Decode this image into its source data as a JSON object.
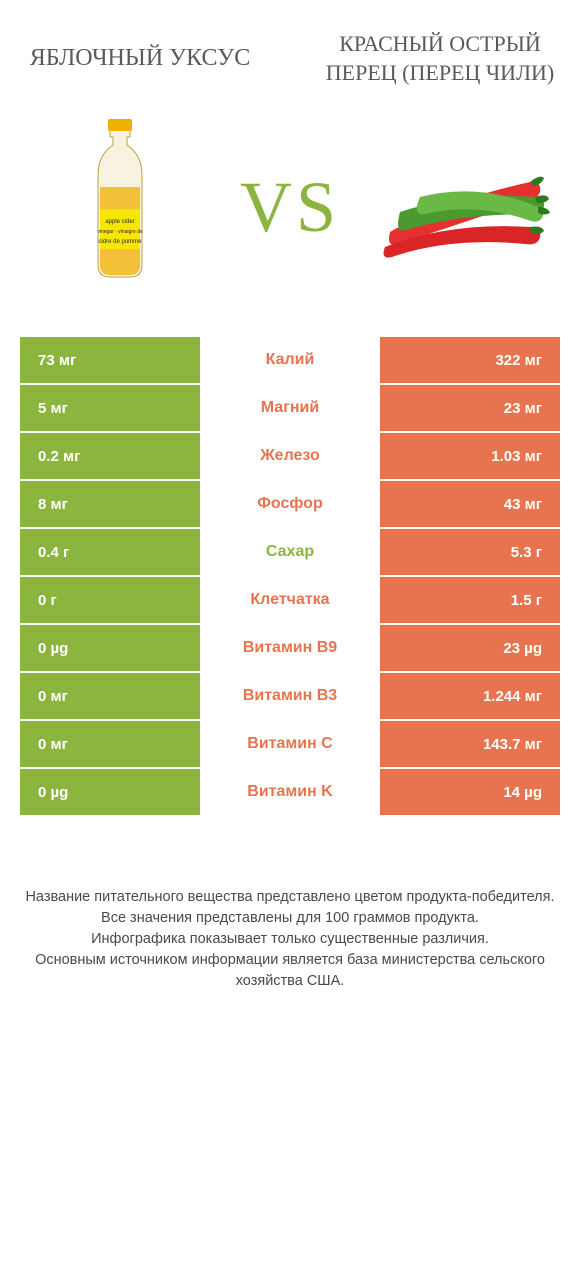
{
  "colors": {
    "left": "#8cb53f",
    "right": "#e8744f",
    "title": "#5a5a5a",
    "footnote": "#4a4a4a",
    "bottle_liquid": "#f0b000",
    "bottle_label": "#f7e600",
    "pepper_red": "#e53030",
    "pepper_green": "#4a9b2f",
    "pepper_stem": "#2e7a1e"
  },
  "header": {
    "left_title": "Яблочный уксус",
    "right_title": "Красный острый перец (перец чили)",
    "left_fontsize": 24,
    "right_fontsize": 22
  },
  "vs_label": "VS",
  "rows": [
    {
      "label": "Калий",
      "left": "73 мг",
      "right": "322 мг",
      "winner": "right"
    },
    {
      "label": "Магний",
      "left": "5 мг",
      "right": "23 мг",
      "winner": "right"
    },
    {
      "label": "Железо",
      "left": "0.2 мг",
      "right": "1.03 мг",
      "winner": "right"
    },
    {
      "label": "Фосфор",
      "left": "8 мг",
      "right": "43 мг",
      "winner": "right"
    },
    {
      "label": "Сахар",
      "left": "0.4 г",
      "right": "5.3 г",
      "winner": "left"
    },
    {
      "label": "Клетчатка",
      "left": "0 г",
      "right": "1.5 г",
      "winner": "right"
    },
    {
      "label": "Витамин B9",
      "left": "0 µg",
      "right": "23 µg",
      "winner": "right"
    },
    {
      "label": "Витамин B3",
      "left": "0 мг",
      "right": "1.244 мг",
      "winner": "right"
    },
    {
      "label": "Витамин C",
      "left": "0 мг",
      "right": "143.7 мг",
      "winner": "right"
    },
    {
      "label": "Витамин K",
      "left": "0 µg",
      "right": "14 µg",
      "winner": "right"
    }
  ],
  "footnotes": [
    "Название питательного вещества представлено цветом продукта-победителя.",
    "Все значения представлены для 100 граммов продукта.",
    "Инфографика показывает только существенные различия.",
    "Основным источником информации является база министерства сельского хозяйства США."
  ]
}
